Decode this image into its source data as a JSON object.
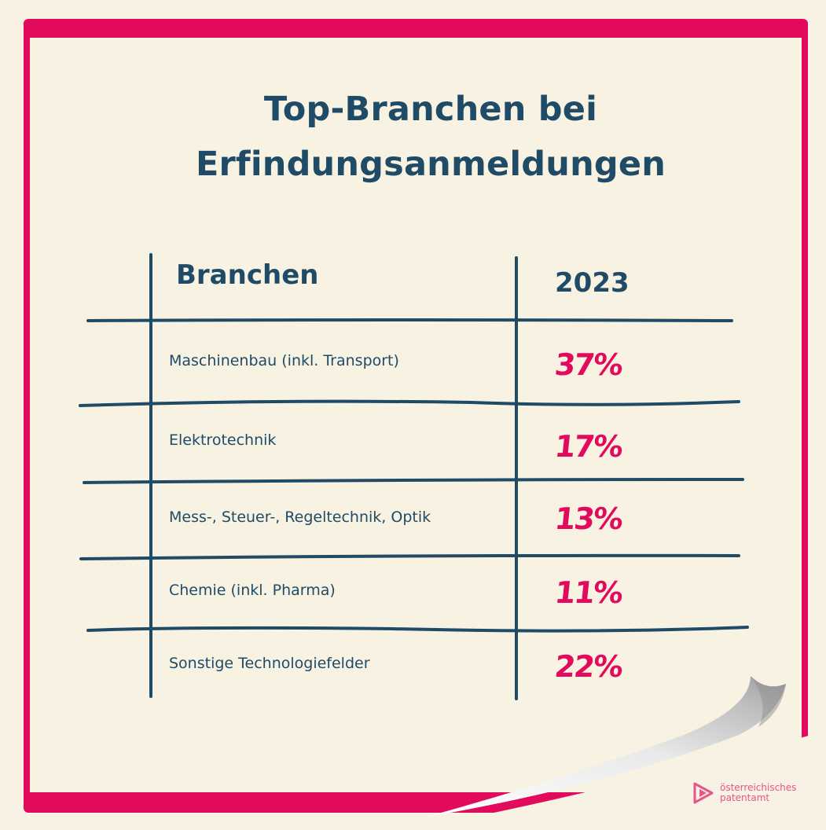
{
  "title": {
    "line1": "Top-Branchen bei",
    "line2": "Erfindungsanmeldungen"
  },
  "table": {
    "col_header": "Branchen",
    "year_header": "2023",
    "rows": [
      {
        "label": "Maschinenbau (inkl. Transport)",
        "value": "37%"
      },
      {
        "label": "Elektrotechnik",
        "value": "17%"
      },
      {
        "label": "Mess-, Steuer-, Regeltechnik, Optik",
        "value": "13%"
      },
      {
        "label": "Chemie (inkl. Pharma)",
        "value": "11%"
      },
      {
        "label": "Sonstige Technologiefelder",
        "value": "22%"
      }
    ]
  },
  "logo": {
    "line1": "österreichisches",
    "line2": "patentamt"
  },
  "colors": {
    "frame": "#e20a5c",
    "paper": "#f8f2e3",
    "text": "#1f4b67",
    "value": "#e20a5c"
  }
}
